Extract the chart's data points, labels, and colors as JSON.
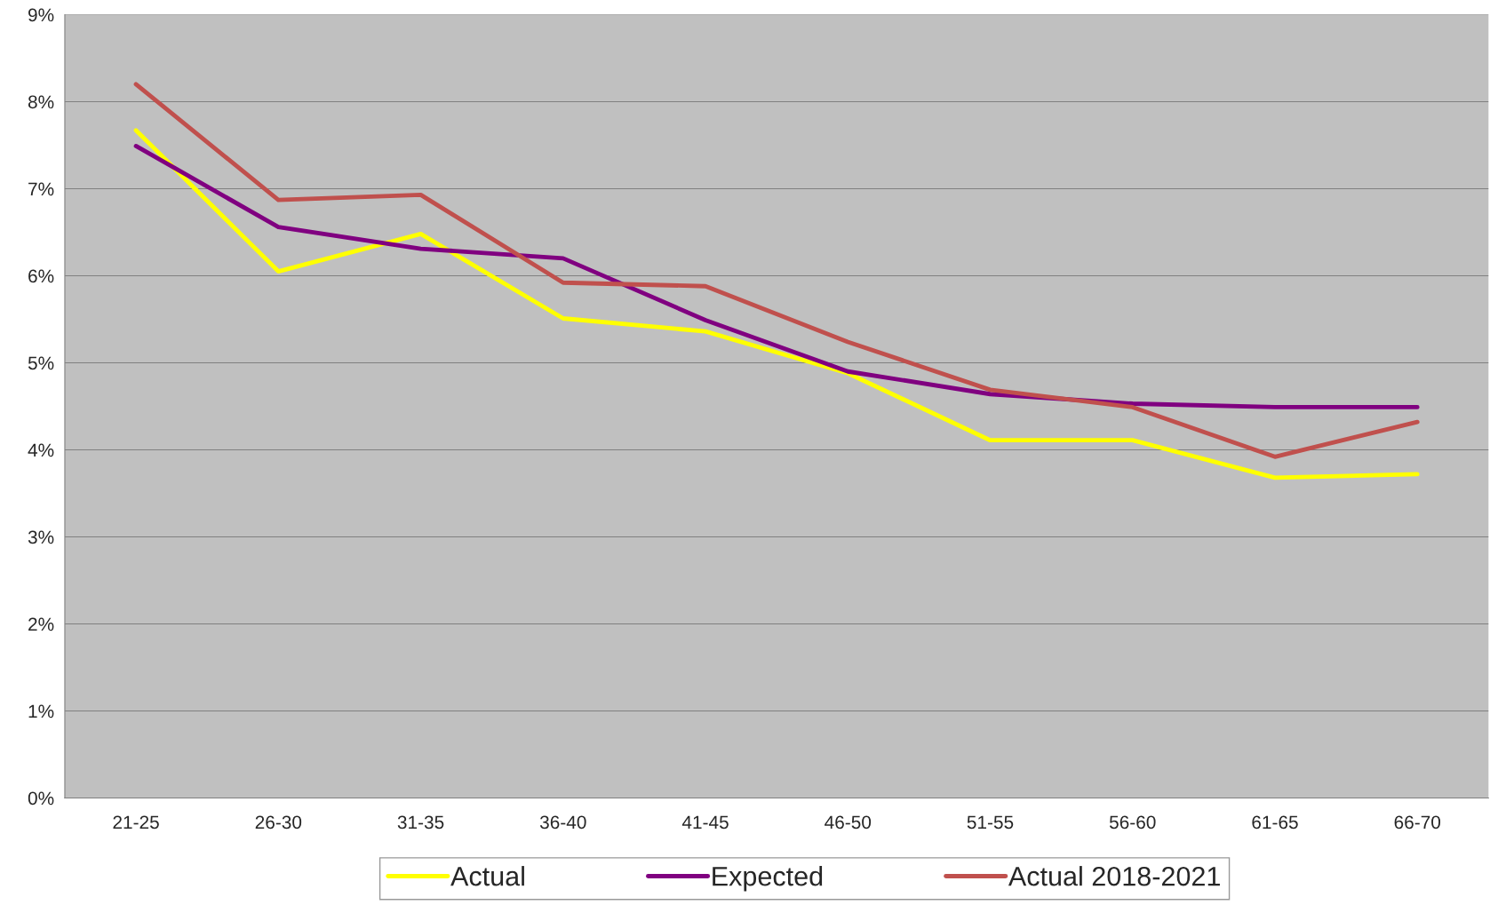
{
  "chart_data": {
    "type": "line",
    "categories": [
      "21-25",
      "26-30",
      "31-35",
      "36-40",
      "41-45",
      "46-50",
      "51-55",
      "56-60",
      "61-65",
      "66-70"
    ],
    "series": [
      {
        "name": "Actual",
        "color": "#ffff00",
        "values": [
          7.67,
          6.05,
          6.48,
          5.51,
          5.36,
          4.88,
          4.11,
          4.11,
          3.68,
          3.72
        ]
      },
      {
        "name": "Expected",
        "color": "#800080",
        "values": [
          7.49,
          6.56,
          6.31,
          6.2,
          5.49,
          4.9,
          4.64,
          4.53,
          4.49,
          4.49
        ]
      },
      {
        "name": "Actual 2018-2021",
        "color": "#c0504d",
        "values": [
          8.2,
          6.87,
          6.93,
          5.92,
          5.88,
          5.24,
          4.69,
          4.49,
          3.92,
          4.32
        ]
      }
    ],
    "ylim": [
      0,
      9
    ],
    "yticks": [
      {
        "value": 0,
        "label": "0%"
      },
      {
        "value": 1,
        "label": "1%"
      },
      {
        "value": 2,
        "label": "2%"
      },
      {
        "value": 3,
        "label": "3%"
      },
      {
        "value": 4,
        "label": "4%"
      },
      {
        "value": 5,
        "label": "5%"
      },
      {
        "value": 6,
        "label": "6%"
      },
      {
        "value": 7,
        "label": "7%"
      },
      {
        "value": 8,
        "label": "8%"
      },
      {
        "value": 9,
        "label": "9%"
      }
    ],
    "grid": "y",
    "legend": "bottom",
    "marker": "none",
    "line_style": "solid"
  }
}
